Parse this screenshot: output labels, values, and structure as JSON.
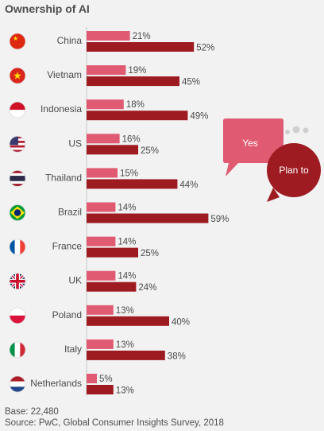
{
  "title": "Ownership of AI",
  "footer": {
    "base": "Base: 22,480",
    "source": "Source: PwC, Global Consumer Insights Survey, 2018"
  },
  "colors": {
    "yes": "#e05a72",
    "plan_to": "#9e1b22",
    "bg": "#f2f2f2"
  },
  "legend": {
    "yes": "Yes",
    "plan_to": "Plan to"
  },
  "chart_data": {
    "type": "bar",
    "orientation": "horizontal",
    "categories": [
      "China",
      "Vietnam",
      "Indonesia",
      "US",
      "Thailand",
      "Brazil",
      "France",
      "UK",
      "Poland",
      "Italy",
      "Netherlands"
    ],
    "flags": [
      "china-flag-icon",
      "vietnam-flag-icon",
      "indonesia-flag-icon",
      "us-flag-icon",
      "thailand-flag-icon",
      "brazil-flag-icon",
      "france-flag-icon",
      "uk-flag-icon",
      "poland-flag-icon",
      "italy-flag-icon",
      "netherlands-flag-icon"
    ],
    "series": [
      {
        "name": "Yes",
        "values": [
          21,
          19,
          18,
          16,
          15,
          14,
          14,
          14,
          13,
          13,
          5
        ]
      },
      {
        "name": "Plan to",
        "values": [
          52,
          45,
          49,
          25,
          44,
          59,
          25,
          24,
          40,
          38,
          13
        ]
      }
    ],
    "value_suffix": "%",
    "xlim": [
      0,
      100
    ],
    "title": "Ownership of AI",
    "legend_placement": "top-right"
  }
}
